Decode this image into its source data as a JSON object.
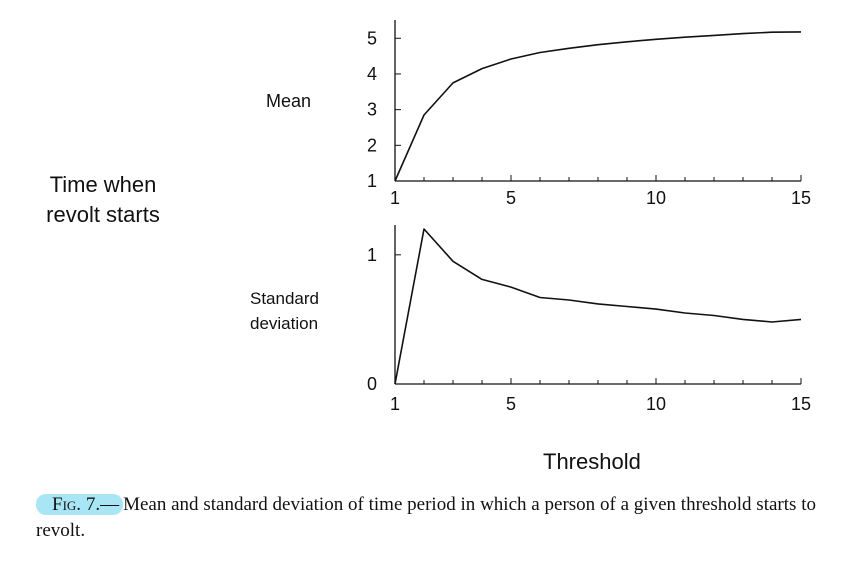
{
  "figure": {
    "y_axis_title": "Time when revolt starts",
    "x_axis_title": "Threshold",
    "caption_label": "Fig. 7.—",
    "caption_text": "Mean and standard deviation of time period in which a person of a given threshold starts to revolt."
  },
  "chart_data": [
    {
      "type": "line",
      "panel_label": "Mean",
      "x": [
        1,
        2,
        3,
        4,
        5,
        6,
        7,
        8,
        9,
        10,
        11,
        12,
        13,
        14,
        15
      ],
      "series": [
        {
          "values": [
            1.0,
            2.85,
            3.75,
            4.15,
            4.42,
            4.6,
            4.72,
            4.82,
            4.9,
            4.97,
            5.03,
            5.08,
            5.13,
            5.17,
            5.18
          ]
        }
      ],
      "xlim": [
        1,
        15
      ],
      "ylim": [
        1,
        5.4
      ],
      "x_ticks": [
        1,
        5,
        10,
        15
      ],
      "y_ticks": [
        1,
        2,
        3,
        4,
        5
      ],
      "grid": false
    },
    {
      "type": "line",
      "panel_label": "Standard deviation",
      "x": [
        1,
        2,
        3,
        4,
        5,
        6,
        7,
        8,
        9,
        10,
        11,
        12,
        13,
        14,
        15
      ],
      "series": [
        {
          "values": [
            0.0,
            1.2,
            0.95,
            0.81,
            0.75,
            0.67,
            0.65,
            0.62,
            0.6,
            0.58,
            0.55,
            0.53,
            0.5,
            0.48,
            0.5
          ]
        }
      ],
      "xlim": [
        1,
        15
      ],
      "ylim": [
        0,
        1.2
      ],
      "x_ticks": [
        1,
        5,
        10,
        15
      ],
      "y_ticks": [
        0,
        1
      ],
      "grid": false
    }
  ]
}
